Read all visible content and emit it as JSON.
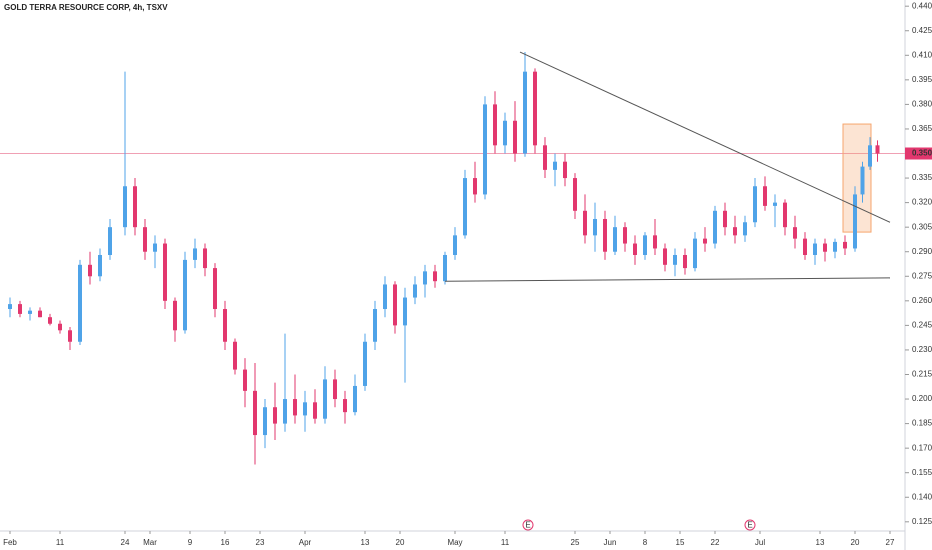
{
  "chart_data": {
    "type": "candlestick",
    "title": "GOLD TERRA RESOURCE CORP, 4h, TSXV",
    "up_color": "#4fa3e8",
    "down_color": "#e2376e",
    "grid": false,
    "xlim": [
      30,
      211
    ],
    "ylim": [
      0.12,
      0.445
    ],
    "xticks": [
      {
        "value": 32,
        "label": "Feb"
      },
      {
        "value": 42,
        "label": "11"
      },
      {
        "value": 55,
        "label": "24"
      },
      {
        "value": 60,
        "label": "Mar"
      },
      {
        "value": 68,
        "label": "9"
      },
      {
        "value": 75,
        "label": "16"
      },
      {
        "value": 82,
        "label": "23"
      },
      {
        "value": 91,
        "label": "Apr"
      },
      {
        "value": 103,
        "label": "13"
      },
      {
        "value": 110,
        "label": "20"
      },
      {
        "value": 121,
        "label": "May"
      },
      {
        "value": 131,
        "label": "11"
      },
      {
        "value": 145,
        "label": "25"
      },
      {
        "value": 152,
        "label": "Jun"
      },
      {
        "value": 159,
        "label": "8"
      },
      {
        "value": 166,
        "label": "15"
      },
      {
        "value": 173,
        "label": "22"
      },
      {
        "value": 182,
        "label": "Jul"
      },
      {
        "value": 194,
        "label": "13"
      },
      {
        "value": 201,
        "label": "20"
      },
      {
        "value": 208,
        "label": "27"
      }
    ],
    "yticks": [
      {
        "value": 0.44,
        "label": "0.440"
      },
      {
        "value": 0.425,
        "label": "0.425"
      },
      {
        "value": 0.41,
        "label": "0.410"
      },
      {
        "value": 0.395,
        "label": "0.395"
      },
      {
        "value": 0.38,
        "label": "0.380"
      },
      {
        "value": 0.365,
        "label": "0.365"
      },
      {
        "value": 0.335,
        "label": "0.335"
      },
      {
        "value": 0.32,
        "label": "0.320"
      },
      {
        "value": 0.305,
        "label": "0.305"
      },
      {
        "value": 0.29,
        "label": "0.290"
      },
      {
        "value": 0.275,
        "label": "0.275"
      },
      {
        "value": 0.26,
        "label": "0.260"
      },
      {
        "value": 0.245,
        "label": "0.245"
      },
      {
        "value": 0.23,
        "label": "0.230"
      },
      {
        "value": 0.215,
        "label": "0.215"
      },
      {
        "value": 0.2,
        "label": "0.200"
      },
      {
        "value": 0.185,
        "label": "0.185"
      },
      {
        "value": 0.17,
        "label": "0.170"
      },
      {
        "value": 0.155,
        "label": "0.155"
      },
      {
        "value": 0.14,
        "label": "0.140"
      },
      {
        "value": 0.125,
        "label": "0.125"
      }
    ],
    "last_price": {
      "value": 0.35,
      "label": "0.350",
      "color": "#f0a0b4"
    },
    "x": [
      32,
      34,
      36,
      38,
      40,
      42,
      44,
      46,
      48,
      50,
      52,
      55,
      57,
      59,
      61,
      63,
      65,
      67,
      69,
      71,
      73,
      75,
      77,
      79,
      81,
      83,
      85,
      87,
      89,
      91,
      93,
      95,
      97,
      99,
      101,
      103,
      105,
      107,
      109,
      111,
      113,
      115,
      117,
      119,
      121,
      123,
      125,
      127,
      129,
      131,
      133,
      135,
      137,
      139,
      141,
      143,
      145,
      147,
      149,
      151,
      153,
      155,
      157,
      159,
      161,
      163,
      165,
      167,
      169,
      171,
      173,
      175,
      177,
      179,
      181,
      183,
      185,
      187,
      189,
      191,
      193,
      195,
      197,
      199,
      201,
      202.5,
      204,
      205.5
    ],
    "open": [
      0.255,
      0.258,
      0.252,
      0.254,
      0.25,
      0.246,
      0.242,
      0.235,
      0.282,
      0.275,
      0.288,
      0.305,
      0.33,
      0.305,
      0.29,
      0.295,
      0.26,
      0.242,
      0.285,
      0.292,
      0.28,
      0.255,
      0.235,
      0.218,
      0.205,
      0.178,
      0.195,
      0.185,
      0.2,
      0.19,
      0.198,
      0.188,
      0.212,
      0.2,
      0.192,
      0.208,
      0.235,
      0.255,
      0.27,
      0.245,
      0.262,
      0.27,
      0.278,
      0.272,
      0.288,
      0.3,
      0.335,
      0.325,
      0.38,
      0.355,
      0.37,
      0.35,
      0.4,
      0.355,
      0.34,
      0.345,
      0.335,
      0.315,
      0.3,
      0.31,
      0.29,
      0.305,
      0.295,
      0.288,
      0.3,
      0.292,
      0.282,
      0.288,
      0.28,
      0.298,
      0.295,
      0.315,
      0.305,
      0.3,
      0.308,
      0.33,
      0.318,
      0.32,
      0.305,
      0.298,
      0.288,
      0.295,
      0.29,
      0.296,
      0.292,
      0.325,
      0.342,
      0.355
    ],
    "high": [
      0.262,
      0.26,
      0.256,
      0.256,
      0.252,
      0.248,
      0.244,
      0.285,
      0.29,
      0.292,
      0.31,
      0.4,
      0.335,
      0.31,
      0.3,
      0.298,
      0.262,
      0.29,
      0.298,
      0.295,
      0.283,
      0.26,
      0.237,
      0.225,
      0.222,
      0.2,
      0.21,
      0.24,
      0.215,
      0.205,
      0.206,
      0.22,
      0.218,
      0.205,
      0.215,
      0.24,
      0.26,
      0.275,
      0.272,
      0.268,
      0.275,
      0.282,
      0.282,
      0.29,
      0.305,
      0.34,
      0.345,
      0.385,
      0.388,
      0.375,
      0.382,
      0.412,
      0.402,
      0.36,
      0.35,
      0.35,
      0.338,
      0.325,
      0.32,
      0.315,
      0.312,
      0.308,
      0.3,
      0.302,
      0.31,
      0.295,
      0.292,
      0.292,
      0.302,
      0.305,
      0.318,
      0.32,
      0.312,
      0.312,
      0.335,
      0.336,
      0.325,
      0.322,
      0.312,
      0.302,
      0.298,
      0.298,
      0.298,
      0.3,
      0.33,
      0.345,
      0.36,
      0.358
    ],
    "low": [
      0.25,
      0.25,
      0.248,
      0.25,
      0.245,
      0.24,
      0.23,
      0.233,
      0.27,
      0.272,
      0.285,
      0.3,
      0.3,
      0.285,
      0.28,
      0.255,
      0.235,
      0.24,
      0.28,
      0.275,
      0.25,
      0.23,
      0.215,
      0.195,
      0.16,
      0.17,
      0.175,
      0.18,
      0.185,
      0.18,
      0.185,
      0.185,
      0.195,
      0.185,
      0.19,
      0.205,
      0.23,
      0.25,
      0.24,
      0.21,
      0.258,
      0.262,
      0.268,
      0.27,
      0.285,
      0.298,
      0.32,
      0.322,
      0.35,
      0.35,
      0.345,
      0.348,
      0.35,
      0.335,
      0.33,
      0.33,
      0.31,
      0.295,
      0.29,
      0.285,
      0.288,
      0.29,
      0.282,
      0.285,
      0.288,
      0.278,
      0.275,
      0.276,
      0.278,
      0.29,
      0.292,
      0.3,
      0.295,
      0.296,
      0.305,
      0.315,
      0.305,
      0.3,
      0.292,
      0.285,
      0.282,
      0.284,
      0.286,
      0.288,
      0.29,
      0.32,
      0.34,
      0.345
    ],
    "close": [
      0.258,
      0.252,
      0.254,
      0.25,
      0.246,
      0.242,
      0.235,
      0.282,
      0.275,
      0.288,
      0.305,
      0.33,
      0.305,
      0.29,
      0.295,
      0.26,
      0.242,
      0.285,
      0.292,
      0.28,
      0.255,
      0.235,
      0.218,
      0.205,
      0.178,
      0.195,
      0.185,
      0.2,
      0.19,
      0.198,
      0.188,
      0.212,
      0.2,
      0.192,
      0.208,
      0.235,
      0.255,
      0.27,
      0.245,
      0.262,
      0.27,
      0.278,
      0.272,
      0.288,
      0.3,
      0.335,
      0.325,
      0.38,
      0.355,
      0.37,
      0.35,
      0.4,
      0.355,
      0.34,
      0.345,
      0.335,
      0.315,
      0.3,
      0.31,
      0.29,
      0.305,
      0.295,
      0.288,
      0.3,
      0.292,
      0.282,
      0.288,
      0.28,
      0.298,
      0.295,
      0.315,
      0.305,
      0.3,
      0.308,
      0.33,
      0.318,
      0.32,
      0.305,
      0.298,
      0.288,
      0.295,
      0.29,
      0.296,
      0.292,
      0.325,
      0.342,
      0.355,
      0.35
    ],
    "trend_lines": [
      {
        "color": "#555555",
        "points": [
          [
            134,
            0.412
          ],
          [
            208,
            0.308
          ]
        ]
      },
      {
        "color": "#555555",
        "points": [
          [
            119,
            0.272
          ],
          [
            208,
            0.274
          ]
        ]
      }
    ],
    "highlight_box": {
      "x": [
        198.6,
        204.2
      ],
      "y": [
        0.302,
        0.368
      ],
      "color": "#f6a56c"
    },
    "events": [
      {
        "label": "E",
        "x": 135.6
      },
      {
        "label": "E",
        "x": 180
      }
    ]
  }
}
